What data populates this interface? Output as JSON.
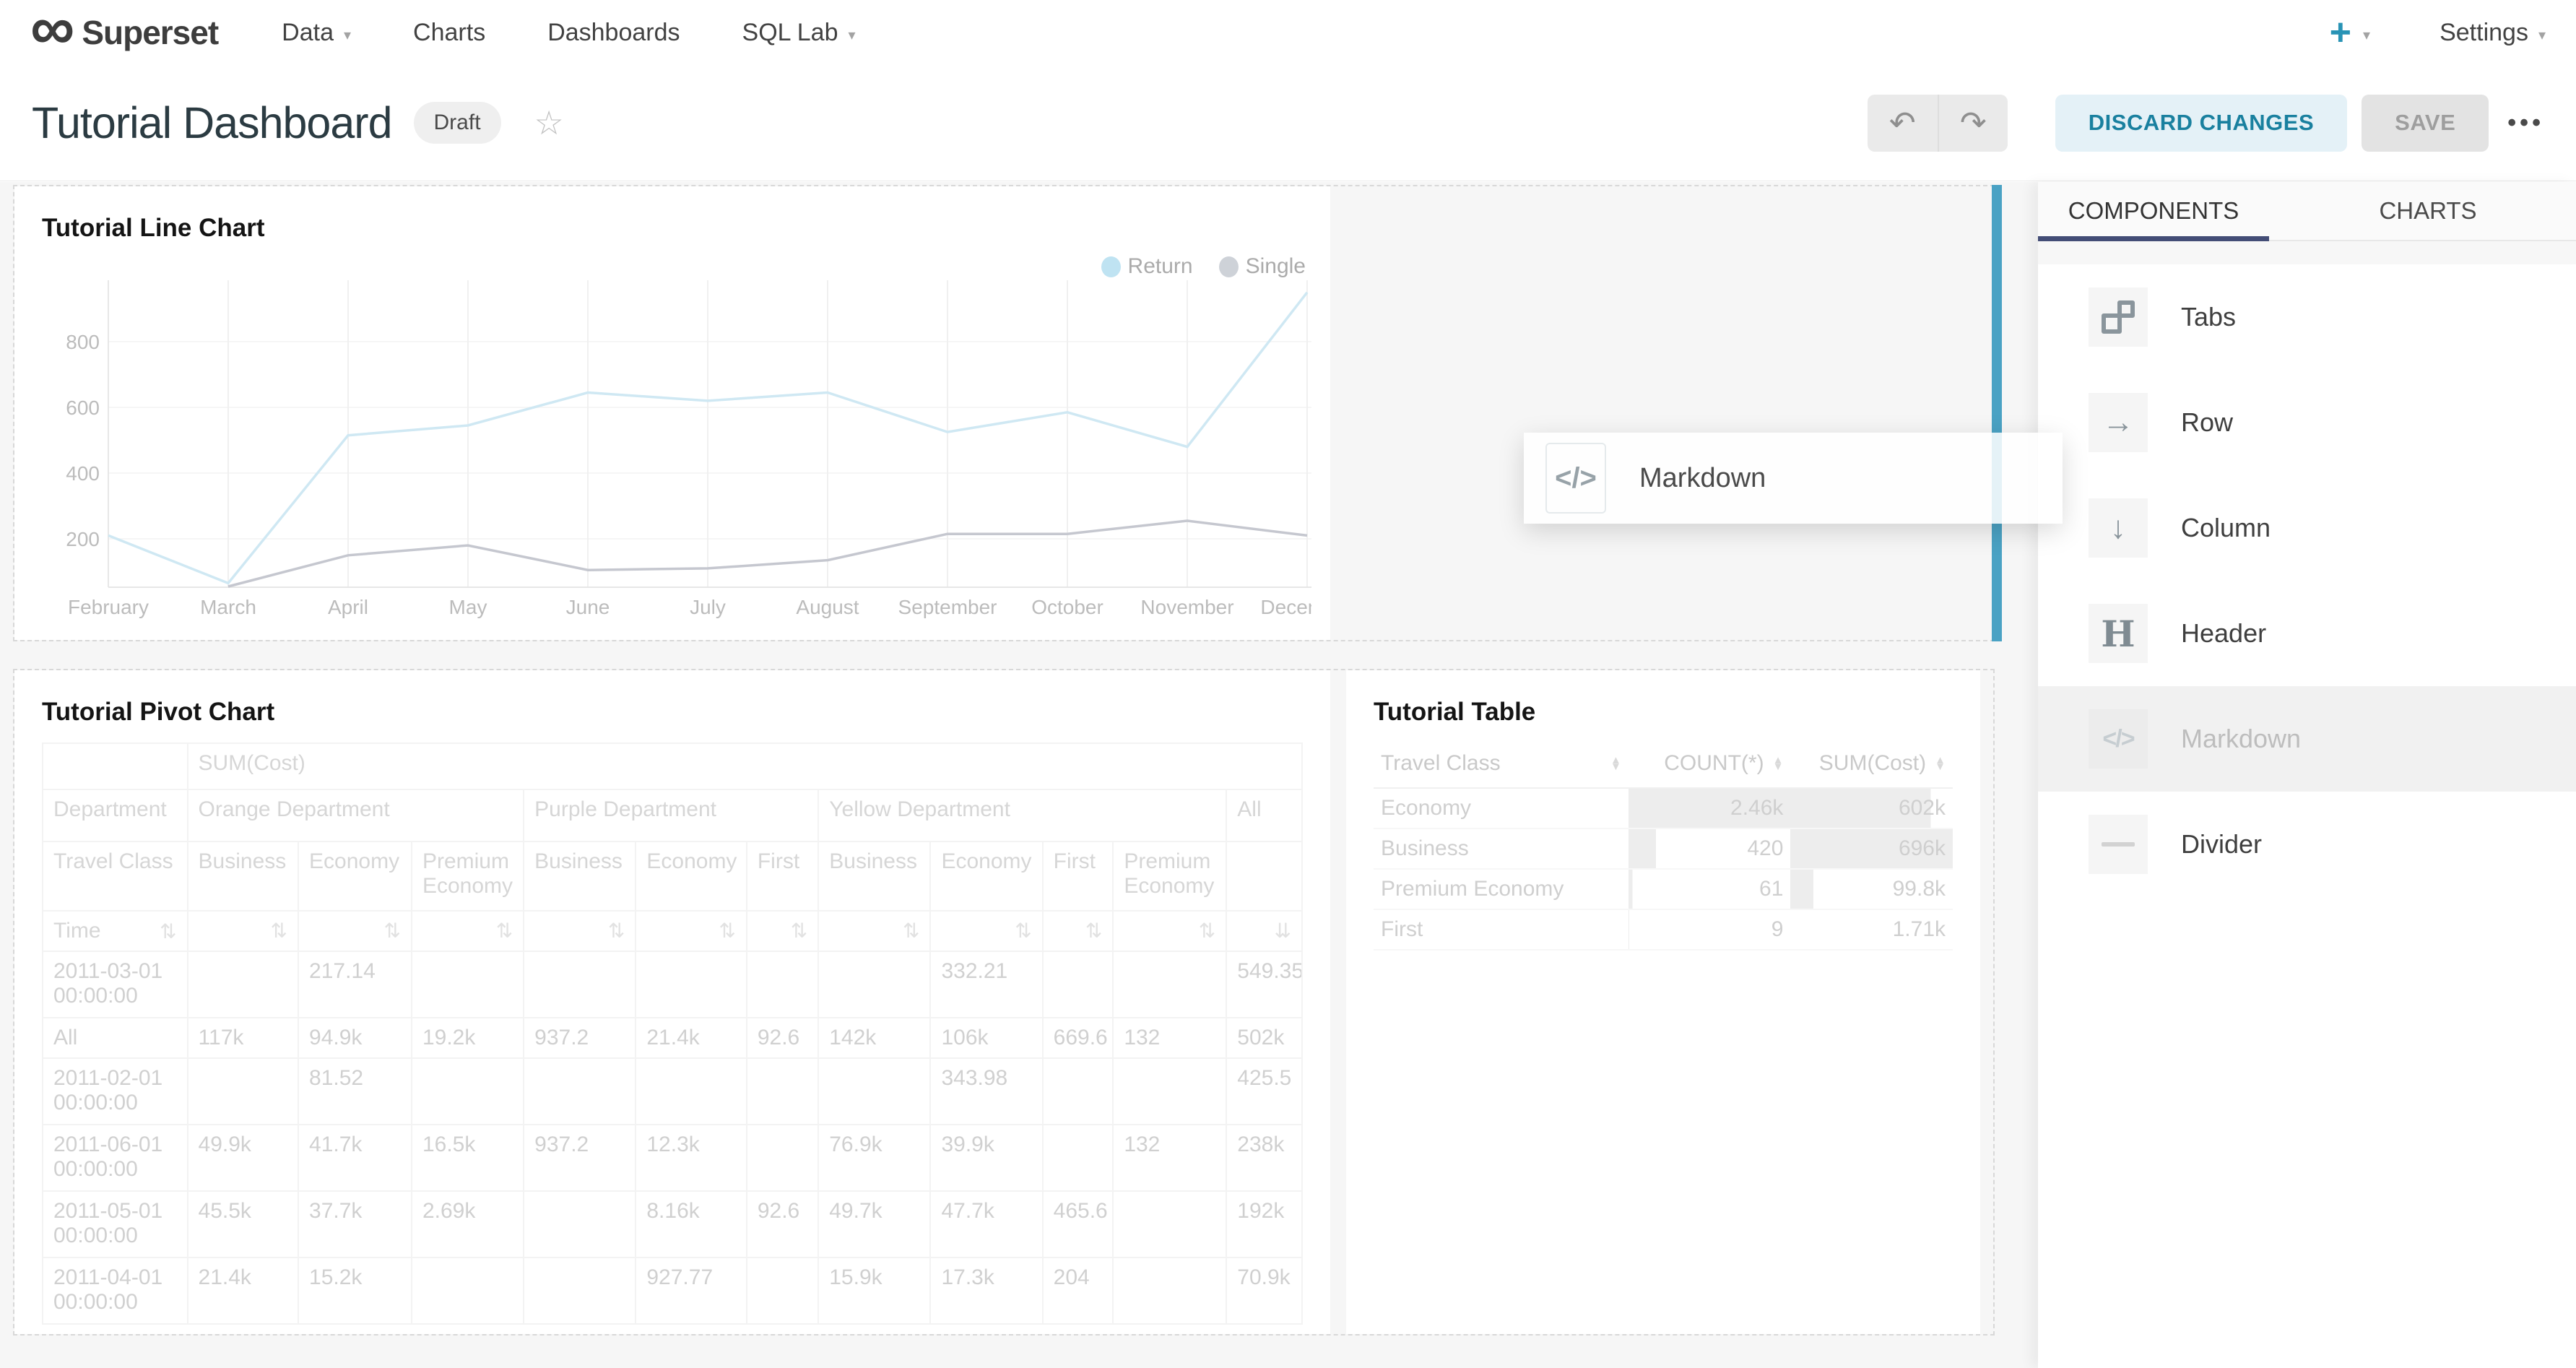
{
  "colors": {
    "accent_teal": "#20a7c9",
    "drop_indicator": "#4aa2c4",
    "tab_underline": "#434d76",
    "return_line": "#cfe8f3",
    "single_line": "#c5c7cf",
    "return_dot": "#bfe3f2",
    "single_dot": "#ced2d8",
    "bar_fill": "#ededed"
  },
  "navbar": {
    "brand": "Superset",
    "logo_icon": "infinity-icon",
    "menus": [
      {
        "label": "Data",
        "caret": true
      },
      {
        "label": "Charts",
        "caret": false
      },
      {
        "label": "Dashboards",
        "caret": false
      },
      {
        "label": "SQL Lab",
        "caret": true
      }
    ],
    "add_button_glyph": "+",
    "settings_label": "Settings"
  },
  "titlebar": {
    "title": "Tutorial Dashboard",
    "badge": "Draft",
    "star_glyph": "☆",
    "undo_glyph": "↶",
    "redo_glyph": "↷",
    "discard_button": "DISCARD CHANGES",
    "save_button": "SAVE",
    "menu_glyph": "•••"
  },
  "panel": {
    "tabs": [
      {
        "label": "COMPONENTS",
        "active": true
      },
      {
        "label": "CHARTS",
        "active": false
      }
    ],
    "items": [
      {
        "label": "Tabs",
        "icon": "tabs-icon",
        "glyph": "",
        "disabled": false
      },
      {
        "label": "Row",
        "icon": "row-icon",
        "glyph": "→",
        "disabled": false
      },
      {
        "label": "Column",
        "icon": "column-icon",
        "glyph": "↓",
        "disabled": false
      },
      {
        "label": "Header",
        "icon": "header-icon",
        "glyph": "H",
        "disabled": false
      },
      {
        "label": "Markdown",
        "icon": "markdown-icon",
        "glyph": "</>",
        "disabled": true
      },
      {
        "label": "Divider",
        "icon": "divider-icon",
        "glyph": "",
        "disabled": false
      }
    ]
  },
  "drag_ghost": {
    "label": "Markdown",
    "glyph": "</>",
    "icon": "markdown-icon"
  },
  "chart_data": [
    {
      "type": "line",
      "title": "Tutorial Line Chart",
      "x": [
        "February",
        "March",
        "April",
        "May",
        "June",
        "July",
        "August",
        "September",
        "October",
        "November",
        "December"
      ],
      "series": [
        {
          "name": "Return",
          "values": [
            210,
            65,
            515,
            545,
            645,
            620,
            645,
            525,
            585,
            480,
            950
          ]
        },
        {
          "name": "Single",
          "values": [
            null,
            55,
            150,
            180,
            105,
            110,
            135,
            215,
            215,
            255,
            210
          ]
        }
      ],
      "yticks": [
        200,
        400,
        600,
        800
      ],
      "ylim": [
        50,
        990
      ],
      "grid": true,
      "legend_position": "top-right",
      "legend": [
        "Return",
        "Single"
      ]
    },
    {
      "type": "table",
      "title": "Tutorial Pivot Chart",
      "metric": "SUM(Cost)",
      "corner_label": "Department",
      "row_dim": "Travel Class",
      "time_label": "Time",
      "sort_glyph": "⇅",
      "sort_desc_glyph": "⇊",
      "col_widths": [
        11.5,
        8.8,
        9.0,
        8.9,
        8.9,
        8.8,
        5.7,
        8.9,
        8.9,
        5.6,
        9.0,
        6.0
      ],
      "groups": [
        {
          "label": "Orange Department",
          "cols": [
            "Business",
            "Economy",
            "Premium Economy"
          ]
        },
        {
          "label": "Purple Department",
          "cols": [
            "Business",
            "Economy",
            "First"
          ]
        },
        {
          "label": "Yellow Department",
          "cols": [
            "Business",
            "Economy",
            "First",
            "Premium Economy"
          ]
        },
        {
          "label": "All",
          "cols": [
            ""
          ]
        }
      ],
      "rows": [
        {
          "label": "2011-03-01 00:00:00",
          "values": [
            "",
            "217.14",
            "",
            "",
            "",
            "",
            "",
            "332.21",
            "",
            "",
            "549.35"
          ],
          "tall": true
        },
        {
          "label": "All",
          "values": [
            "117k",
            "94.9k",
            "19.2k",
            "937.2",
            "21.4k",
            "92.6",
            "142k",
            "106k",
            "669.6",
            "132",
            "502k"
          ],
          "tall": false
        },
        {
          "label": "2011-02-01 00:00:00",
          "values": [
            "",
            "81.52",
            "",
            "",
            "",
            "",
            "",
            "343.98",
            "",
            "",
            "425.5"
          ],
          "tall": true
        },
        {
          "label": "2011-06-01 00:00:00",
          "values": [
            "49.9k",
            "41.7k",
            "16.5k",
            "937.2",
            "12.3k",
            "",
            "76.9k",
            "39.9k",
            "",
            "132",
            "238k"
          ],
          "tall": true
        },
        {
          "label": "2011-05-01 00:00:00",
          "values": [
            "45.5k",
            "37.7k",
            "2.69k",
            "",
            "8.16k",
            "92.6",
            "49.7k",
            "47.7k",
            "465.6",
            "",
            "192k"
          ],
          "tall": true
        },
        {
          "label": "2011-04-01 00:00:00",
          "values": [
            "21.4k",
            "15.2k",
            "",
            "",
            "927.77",
            "",
            "15.9k",
            "17.3k",
            "204",
            "",
            "70.9k"
          ],
          "tall": true
        }
      ]
    },
    {
      "type": "table",
      "title": "Tutorial Table",
      "columns": [
        "Travel Class",
        "COUNT(*)",
        "SUM(Cost)"
      ],
      "rows": [
        {
          "cells": [
            "Economy",
            "2.46k",
            "602k"
          ],
          "bars": [
            0,
            100,
            86.5
          ]
        },
        {
          "cells": [
            "Business",
            "420",
            "696k"
          ],
          "bars": [
            0,
            17,
            100
          ]
        },
        {
          "cells": [
            "Premium Economy",
            "61",
            "99.8k"
          ],
          "bars": [
            0,
            2.5,
            14.3
          ]
        },
        {
          "cells": [
            "First",
            "9",
            "1.71k"
          ],
          "bars": [
            0,
            0.4,
            0.2
          ]
        }
      ]
    }
  ]
}
